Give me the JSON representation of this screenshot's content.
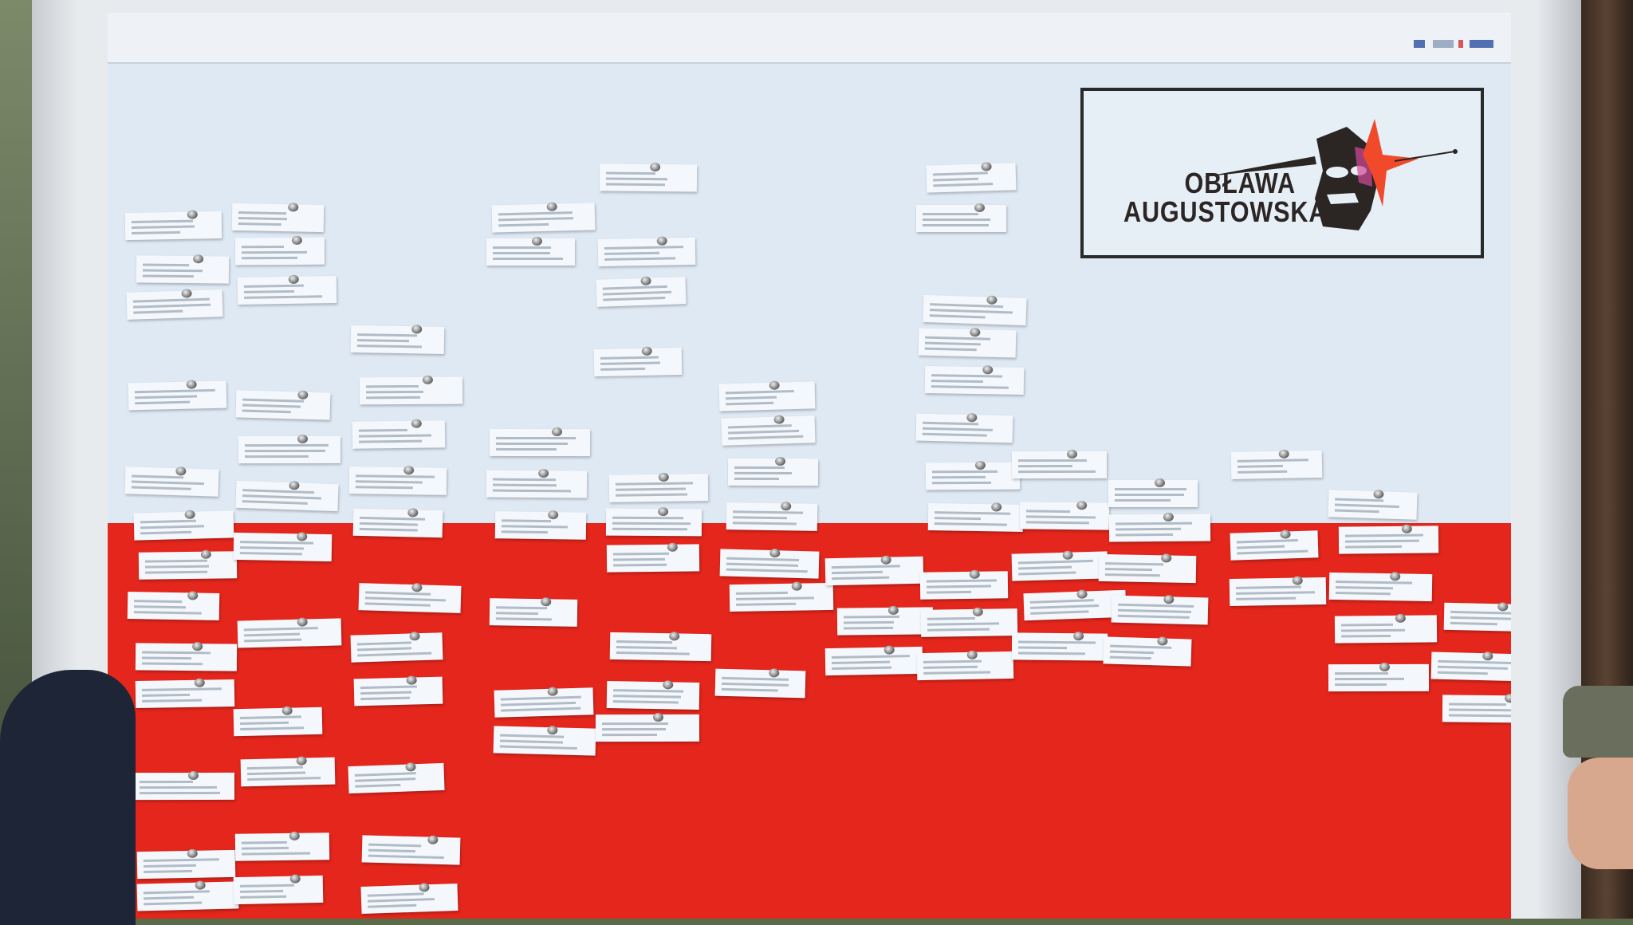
{
  "board": {
    "logo": {
      "line1": "OBŁAWA",
      "line2": "AUGUSTOWSKA"
    },
    "colors": {
      "white_field": "#dfe9f4",
      "red_field": "#e4261c",
      "logo_star": "#f04a2a",
      "logo_dark": "#2b2524"
    },
    "slips_description_icon": "paper-slip-with-names",
    "pin_icon": "pushpin-icon"
  }
}
